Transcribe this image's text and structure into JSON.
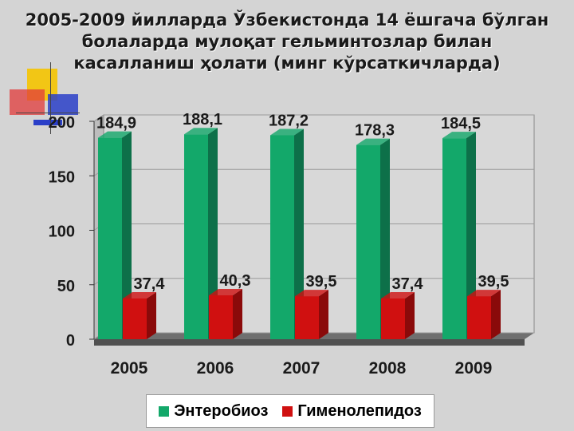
{
  "title_lines": [
    "2005-2009 йилларда Ўзбекистонда 14 ёшгача бўлган",
    "болаларда мулоқат гельминтозлар билан",
    "касалланиш ҳолати (минг кўрсаткичларда)"
  ],
  "colors": {
    "series1": "#13a86a",
    "series1_side": "#0d7049",
    "series2": "#d01010",
    "series2_side": "#8a0a0a",
    "deco_yellow": "#f5c400",
    "deco_red": "#e23b3b",
    "deco_blue": "#2a3fc8"
  },
  "chart_data": {
    "type": "bar",
    "categories": [
      "2005",
      "2006",
      "2007",
      "2008",
      "2009"
    ],
    "series": [
      {
        "name": "Энтеробиоз",
        "values": [
          184.9,
          188.1,
          187.2,
          178.3,
          184.5
        ],
        "labels": [
          "184,9",
          "188,1",
          "187,2",
          "178,3",
          "184,5"
        ]
      },
      {
        "name": "Гименолепидоз",
        "values": [
          37.4,
          40.3,
          39.5,
          37.4,
          39.5
        ],
        "labels": [
          "37,4",
          "40,3",
          "39,5",
          "37,4",
          "39,5"
        ]
      }
    ],
    "ylim": [
      0,
      200
    ],
    "yticks": [
      0,
      50,
      100,
      150,
      200
    ],
    "ytick_labels": [
      "0",
      "50",
      "100",
      "150",
      "200"
    ],
    "grid": true,
    "legend_position": "bottom",
    "three_d": true
  }
}
